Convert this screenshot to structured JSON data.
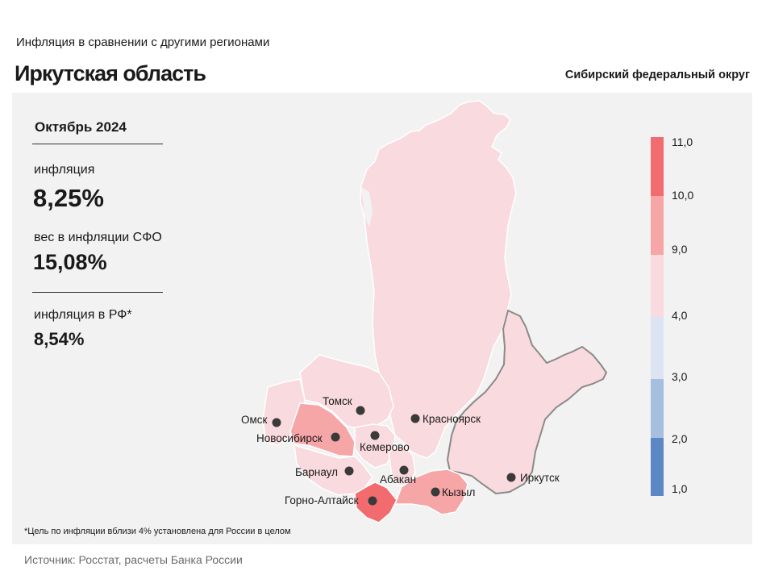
{
  "header": {
    "subtitle": "Инфляция  в сравнении  с другими  регионами",
    "title": "Иркутская область",
    "district": "Сибирский федеральный округ"
  },
  "stats": {
    "period": "Октябрь 2024",
    "inflation_label": "инфляция",
    "inflation_value": "8,25%",
    "weight_label": "вес в инфляции  СФО",
    "weight_value": "15,08%",
    "rf_label": "инфляция  в РФ*",
    "rf_value": "8,54%"
  },
  "footnote": "*Цель по инфляции вблизи 4% установлена для России в целом",
  "source": "Источник: Росстат, расчеты Банка России",
  "cities": {
    "omsk": "Омск",
    "tomsk": "Томск",
    "novosibirsk": "Новосибирск",
    "kemerovo": "Кемерово",
    "krasnoyarsk": "Красноярск",
    "barnaul": "Барнаул",
    "abakan": "Абакан",
    "gorno_altaysk": "Горно-Алтайск",
    "kyzyl": "Кызыл",
    "irkutsk": "Иркутск"
  },
  "legend": {
    "ticks": [
      "11,0",
      "10,0",
      "9,0",
      "4,0",
      "3,0",
      "2,0",
      "1,0"
    ],
    "colors": [
      "#f26b6e",
      "#f7a6a8",
      "#f9dade",
      "#dce4f3",
      "#a6bfdf",
      "#5b87c5"
    ]
  },
  "colors": {
    "low_band": "#f9dade",
    "mid_band": "#f7a6a8",
    "high_band": "#f26b6e",
    "panel": "#f2f2f2"
  }
}
